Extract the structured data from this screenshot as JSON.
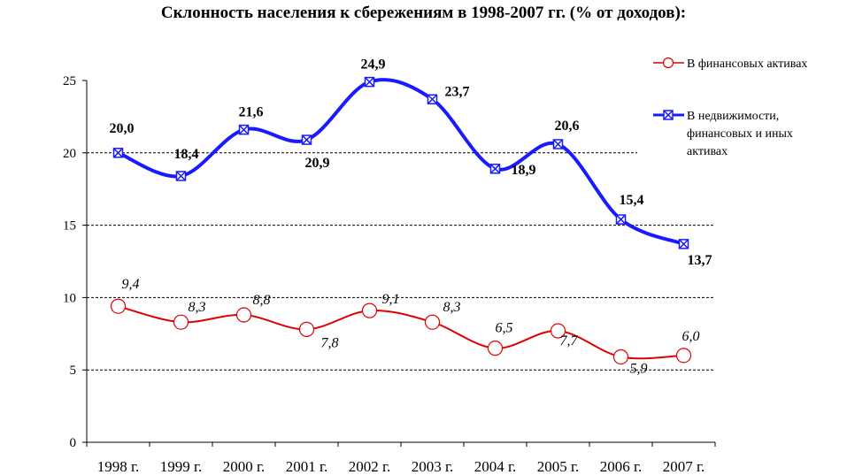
{
  "chart_data": {
    "type": "line",
    "title": "Склонность населения к сбережениям в 1998-2007 гг. (% от доходов):",
    "categories": [
      "1998 г.",
      "1999 г.",
      "2000 г.",
      "2001 г.",
      "2002 г.",
      "2003 г.",
      "2004 г.",
      "2005 г.",
      "2006 г.",
      "2007 г."
    ],
    "ylim": [
      0,
      25
    ],
    "yticks": [
      "0",
      "5",
      "10",
      "15",
      "20",
      "25"
    ],
    "grid": "horizontal dashed at 5, 10, 15, 20",
    "legend_position": "right",
    "series": [
      {
        "name": "В финансовых активах",
        "color": "#e00000",
        "marker": "open-circle",
        "values": [
          9.4,
          8.3,
          8.8,
          7.8,
          9.1,
          8.3,
          6.5,
          7.7,
          5.9,
          6.0
        ],
        "labels": [
          "9,4",
          "8,3",
          "8,8",
          "7,8",
          "9,1",
          "8,3",
          "6,5",
          "7,7",
          "5,9",
          "6,0"
        ]
      },
      {
        "name": "В недвижимости, финансовых и иных активах",
        "name_lines": [
          "В недвижимости,",
          "финансовых и иных",
          "активах"
        ],
        "color": "#1a1aff",
        "marker": "x-square",
        "values": [
          20.0,
          18.4,
          21.6,
          20.9,
          24.9,
          23.7,
          18.9,
          20.6,
          15.4,
          13.7
        ],
        "labels": [
          "20,0",
          "18,4",
          "21,6",
          "20,9",
          "24,9",
          "23,7",
          "18,9",
          "20,6",
          "15,4",
          "13,7"
        ]
      }
    ]
  }
}
